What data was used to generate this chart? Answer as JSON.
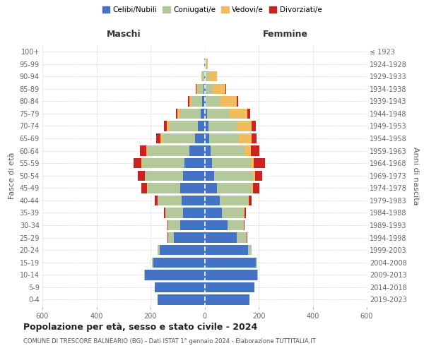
{
  "age_groups": [
    "0-4",
    "5-9",
    "10-14",
    "15-19",
    "20-24",
    "25-29",
    "30-34",
    "35-39",
    "40-44",
    "45-49",
    "50-54",
    "55-59",
    "60-64",
    "65-69",
    "70-74",
    "75-79",
    "80-84",
    "85-89",
    "90-94",
    "95-99",
    "100+"
  ],
  "birth_years": [
    "2019-2023",
    "2014-2018",
    "2009-2013",
    "2004-2008",
    "1999-2003",
    "1994-1998",
    "1989-1993",
    "1984-1988",
    "1979-1983",
    "1974-1978",
    "1969-1973",
    "1964-1968",
    "1959-1963",
    "1954-1958",
    "1949-1953",
    "1944-1948",
    "1939-1943",
    "1934-1938",
    "1929-1933",
    "1924-1928",
    "≤ 1923"
  ],
  "colors": {
    "celibe": "#4472c4",
    "coniugato": "#b3c99c",
    "vedovo": "#f0bc5e",
    "divorziato": "#cc2222"
  },
  "maschi": {
    "celibe": [
      175,
      185,
      220,
      190,
      165,
      115,
      90,
      80,
      85,
      90,
      80,
      75,
      55,
      35,
      25,
      15,
      8,
      5,
      2,
      1,
      0
    ],
    "coniugato": [
      0,
      0,
      3,
      5,
      10,
      20,
      45,
      65,
      90,
      120,
      140,
      155,
      155,
      120,
      105,
      75,
      40,
      20,
      8,
      1,
      0
    ],
    "vedovo": [
      0,
      0,
      0,
      0,
      0,
      0,
      0,
      0,
      0,
      2,
      2,
      3,
      5,
      8,
      10,
      10,
      8,
      5,
      2,
      0,
      0
    ],
    "divorziato": [
      0,
      0,
      0,
      0,
      0,
      2,
      2,
      5,
      10,
      22,
      25,
      30,
      25,
      15,
      10,
      5,
      5,
      3,
      0,
      0,
      0
    ]
  },
  "femmine": {
    "nubile": [
      165,
      185,
      195,
      190,
      160,
      120,
      85,
      65,
      55,
      45,
      35,
      28,
      22,
      18,
      15,
      8,
      5,
      3,
      2,
      1,
      0
    ],
    "coniugata": [
      0,
      0,
      2,
      5,
      15,
      35,
      60,
      80,
      105,
      130,
      145,
      140,
      125,
      110,
      105,
      85,
      55,
      28,
      15,
      5,
      1
    ],
    "vedova": [
      0,
      0,
      0,
      0,
      0,
      0,
      0,
      2,
      3,
      5,
      8,
      15,
      25,
      45,
      55,
      65,
      58,
      45,
      28,
      5,
      1
    ],
    "divorziata": [
      0,
      0,
      0,
      0,
      0,
      2,
      2,
      5,
      10,
      22,
      25,
      40,
      30,
      20,
      15,
      10,
      5,
      5,
      0,
      0,
      0
    ]
  },
  "title": "Popolazione per età, sesso e stato civile - 2024",
  "subtitle": "COMUNE DI TRESCORE BALNEARIO (BG) - Dati ISTAT 1° gennaio 2024 - Elaborazione TUTTITALIA.IT",
  "xlim": 600,
  "xlabel_left": "Maschi",
  "xlabel_right": "Femmine",
  "ylabel_left": "Fasce di età",
  "ylabel_right": "Anni di nascita",
  "legend_labels": [
    "Celibi/Nubili",
    "Coniugati/e",
    "Vedovi/e",
    "Divorziati/e"
  ],
  "background_color": "#ffffff",
  "grid_color": "#cccccc"
}
